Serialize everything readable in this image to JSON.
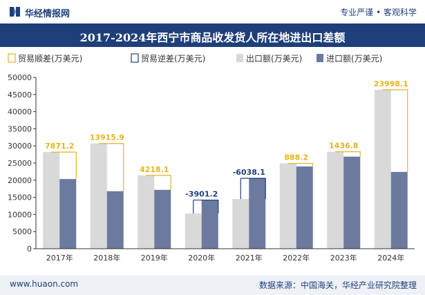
{
  "header": {
    "brand": "华经情报网",
    "slogan": "专业严谨 • 客观科学"
  },
  "title": "2017-2024年西宁市商品收发货人所在地进出口差额",
  "footer": {
    "url": "www.huaon.com",
    "source": "数据来源：中国海关，华经产业研究院整理"
  },
  "colors": {
    "surplus": "#e6b422",
    "deficit": "#1f3f7a",
    "export": "#d9d9d9",
    "import": "#6b7a9e"
  },
  "chart_data": {
    "type": "bar",
    "categories": [
      "2017年",
      "2018年",
      "2019年",
      "2020年",
      "2021年",
      "2022年",
      "2023年",
      "2024年"
    ],
    "series": [
      {
        "name": "出口额(万美元)",
        "values": [
          28200,
          30700,
          21400,
          10300,
          14500,
          24900,
          28300,
          46400
        ]
      },
      {
        "name": "进口额(万美元)",
        "values": [
          20329,
          16784,
          17182,
          14201,
          20538,
          24012,
          26863,
          22402
        ]
      }
    ],
    "difference": {
      "values": [
        7871.2,
        13915.9,
        4218.1,
        -3901.2,
        -6038.1,
        888.2,
        1436.8,
        23998.1
      ],
      "labels": [
        "7871.2",
        "13915.9",
        "4218.1",
        "-3901.2",
        "-6038.1",
        "888.2",
        "1436.8",
        "23998.1"
      ]
    },
    "legend": [
      "贸易顺差(万美元)",
      "贸易逆差(万美元)",
      "出口额(万美元)",
      "进口额(万美元)"
    ],
    "legend_position": "top",
    "yticks": [
      "0",
      "5000",
      "10000",
      "15000",
      "20000",
      "25000",
      "30000",
      "35000",
      "40000",
      "45000",
      "50000"
    ],
    "ylim": [
      0,
      50000
    ],
    "grid": false
  }
}
